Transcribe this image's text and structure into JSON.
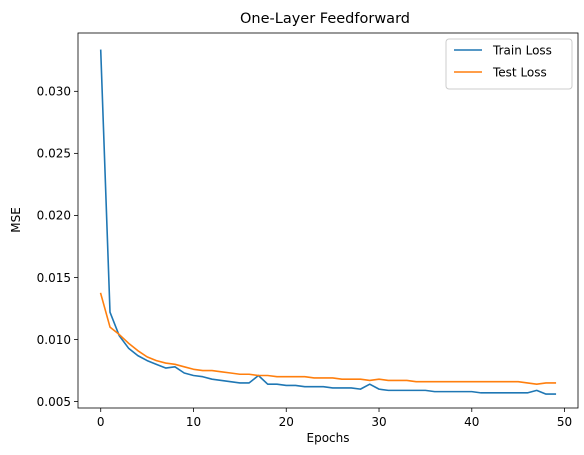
{
  "chart_data": {
    "type": "line",
    "title": "One-Layer Feedforward",
    "xlabel": "Epochs",
    "ylabel": "MSE",
    "xlim": [
      -2.45,
      51.45
    ],
    "ylim": [
      0.00448,
      0.0347
    ],
    "xticks": [
      0,
      10,
      20,
      30,
      40,
      50
    ],
    "yticks": [
      0.005,
      0.01,
      0.015,
      0.02,
      0.025,
      0.03
    ],
    "ytick_labels": [
      "0.005",
      "0.010",
      "0.015",
      "0.020",
      "0.025",
      "0.030"
    ],
    "grid": false,
    "legend": "top-right",
    "x": [
      0,
      1,
      2,
      3,
      4,
      5,
      6,
      7,
      8,
      9,
      10,
      11,
      12,
      13,
      14,
      15,
      16,
      17,
      18,
      19,
      20,
      21,
      22,
      23,
      24,
      25,
      26,
      27,
      28,
      29,
      30,
      31,
      32,
      33,
      34,
      35,
      36,
      37,
      38,
      39,
      40,
      41,
      42,
      43,
      44,
      45,
      46,
      47,
      48,
      49
    ],
    "series": [
      {
        "name": "Train Loss",
        "color": "#1f77b4",
        "values": [
          0.0333,
          0.0122,
          0.0103,
          0.0093,
          0.0087,
          0.0083,
          0.008,
          0.0077,
          0.0078,
          0.0073,
          0.0071,
          0.007,
          0.0068,
          0.0067,
          0.0066,
          0.0065,
          0.0065,
          0.0071,
          0.0064,
          0.0064,
          0.0063,
          0.0063,
          0.0062,
          0.0062,
          0.0062,
          0.0061,
          0.0061,
          0.0061,
          0.006,
          0.0064,
          0.006,
          0.0059,
          0.0059,
          0.0059,
          0.0059,
          0.0059,
          0.0058,
          0.0058,
          0.0058,
          0.0058,
          0.0058,
          0.0057,
          0.0057,
          0.0057,
          0.0057,
          0.0057,
          0.0057,
          0.0059,
          0.0056,
          0.0056
        ]
      },
      {
        "name": "Test Loss",
        "color": "#ff7f0e",
        "values": [
          0.0137,
          0.011,
          0.0104,
          0.0097,
          0.0091,
          0.0086,
          0.0083,
          0.0081,
          0.008,
          0.0078,
          0.0076,
          0.0075,
          0.0075,
          0.0074,
          0.0073,
          0.0072,
          0.0072,
          0.0071,
          0.0071,
          0.007,
          0.007,
          0.007,
          0.007,
          0.0069,
          0.0069,
          0.0069,
          0.0068,
          0.0068,
          0.0068,
          0.0067,
          0.0068,
          0.0067,
          0.0067,
          0.0067,
          0.0066,
          0.0066,
          0.0066,
          0.0066,
          0.0066,
          0.0066,
          0.0066,
          0.0066,
          0.0066,
          0.0066,
          0.0066,
          0.0066,
          0.0065,
          0.0064,
          0.0065,
          0.0065
        ]
      }
    ]
  }
}
